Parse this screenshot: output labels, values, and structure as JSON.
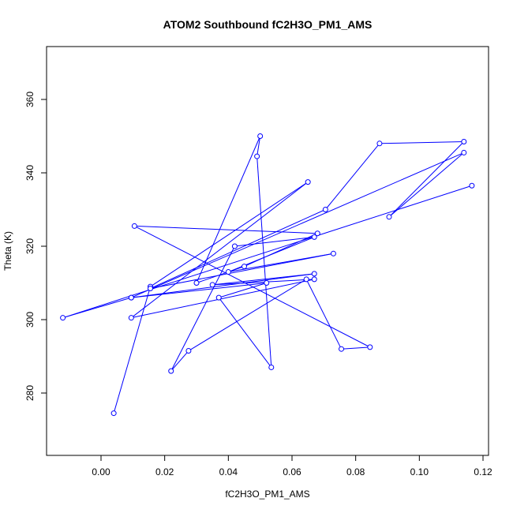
{
  "chart_data": {
    "type": "line",
    "title": "ATOM2 Southbound fC2H3O_PM1_AMS",
    "xlabel": "fC2H3O_PM1_AMS",
    "ylabel": "Theta (K)",
    "xlim": [
      -0.017,
      0.12
    ],
    "ylim": [
      264,
      374
    ],
    "xticks": [
      "0.00",
      "0.02",
      "0.04",
      "0.06",
      "0.08",
      "0.10",
      "0.12"
    ],
    "xtick_values": [
      0.0,
      0.02,
      0.04,
      0.06,
      0.08,
      0.1,
      0.12
    ],
    "yticks": [
      "280",
      "300",
      "320",
      "340",
      "360"
    ],
    "ytick_values": [
      280,
      300,
      320,
      340,
      360
    ],
    "grid": false,
    "color": "#0000ff",
    "series": [
      {
        "markers": "open-circle",
        "x": [
          0.004,
          0.0155,
          0.065,
          0.0095,
          0.067,
          0.035,
          0.067,
          0.0095,
          0.052,
          0.037,
          0.0535,
          0.049,
          0.05,
          0.03,
          0.045,
          0.068,
          0.0105,
          0.0845,
          0.0755,
          0.0645,
          0.0275,
          0.022,
          0.042,
          0.067,
          0.04,
          0.073,
          0.0155,
          0.0705,
          0.0875,
          0.114,
          0.0905,
          0.114,
          0.0095,
          -0.012,
          0.1165
        ],
        "y": [
          274.5,
          309,
          337.5,
          300.5,
          311,
          309.5,
          312.5,
          306,
          310,
          306,
          287,
          344.5,
          350,
          310,
          314.5,
          323.5,
          325.5,
          292.5,
          292,
          311,
          291.5,
          286,
          320,
          322.5,
          313,
          318,
          308.5,
          330,
          348,
          348.5,
          328,
          345.5,
          306,
          300.5,
          336.5
        ]
      }
    ]
  }
}
